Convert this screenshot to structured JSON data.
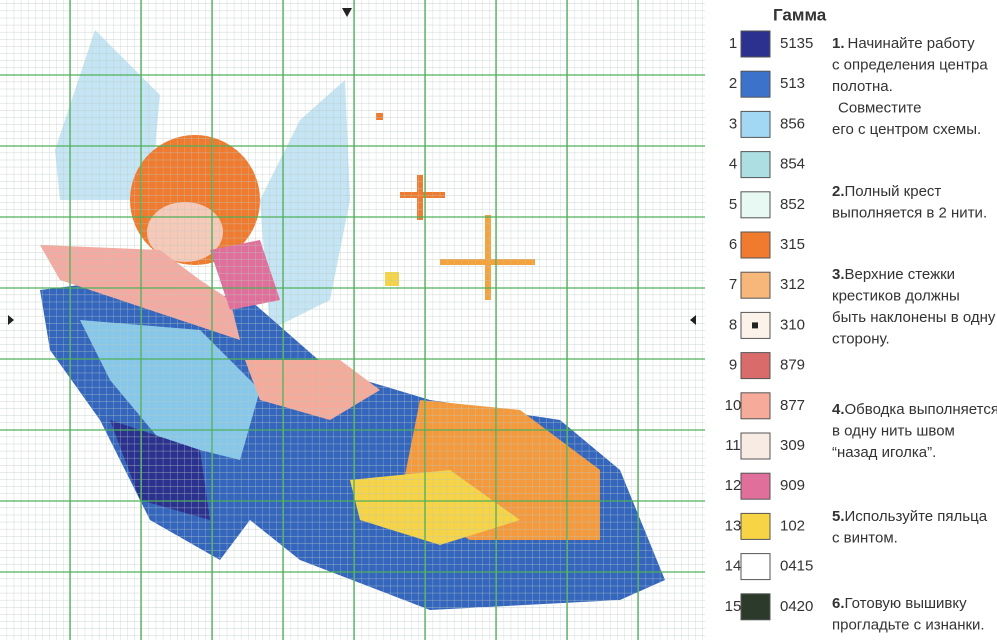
{
  "legend": {
    "title": "Гамма",
    "rows": [
      {
        "number": "1",
        "color": "#2b318f",
        "code": "5135"
      },
      {
        "number": "2",
        "color": "#3c72c9",
        "code": "513"
      },
      {
        "number": "3",
        "color": "#a3d8f4",
        "code": "856"
      },
      {
        "number": "4",
        "color": "#abdfe1",
        "code": "854"
      },
      {
        "number": "5",
        "color": "#e8f8f3",
        "code": "852"
      },
      {
        "number": "6",
        "color": "#f07a2e",
        "code": "315"
      },
      {
        "number": "7",
        "color": "#f7b77a",
        "code": "312"
      },
      {
        "number": "8",
        "color": "#fbf3ea",
        "code": "310"
      },
      {
        "number": "9",
        "color": "#d96b6b",
        "code": "879"
      },
      {
        "number": "10",
        "color": "#f6aa9a",
        "code": "877"
      },
      {
        "number": "11",
        "color": "#f7ebe3",
        "code": "309"
      },
      {
        "number": "12",
        "color": "#e0709b",
        "code": "909"
      },
      {
        "number": "13",
        "color": "#f6d445",
        "code": "102"
      },
      {
        "number": "14",
        "color": "#ffffff",
        "code": "0415"
      },
      {
        "number": "15",
        "color": "#2c3a2c",
        "code": "0420"
      }
    ]
  },
  "instructions": [
    {
      "num": "1.",
      "lines": [
        "Начинайте работу",
        "с определения центра",
        "полотна.",
        "Совместите",
        "его с центром схемы."
      ]
    },
    {
      "num": "2.",
      "lines": [
        "Полный крест",
        "выполняется в 2 нити."
      ]
    },
    {
      "num": "3.",
      "lines": [
        "Верхние стежки",
        "крестиков должны",
        "быть наклонены в одну",
        "сторону."
      ]
    },
    {
      "num": "4.",
      "lines": [
        "Обводка выполняется",
        "в одну нить швом",
        "“назад иголка”."
      ]
    },
    {
      "num": "5.",
      "lines": [
        "Используйте пяльца",
        "с винтом."
      ]
    },
    {
      "num": "6.",
      "lines": [
        "Готовую вышивку",
        "прогладьте с изнанки."
      ]
    }
  ]
}
